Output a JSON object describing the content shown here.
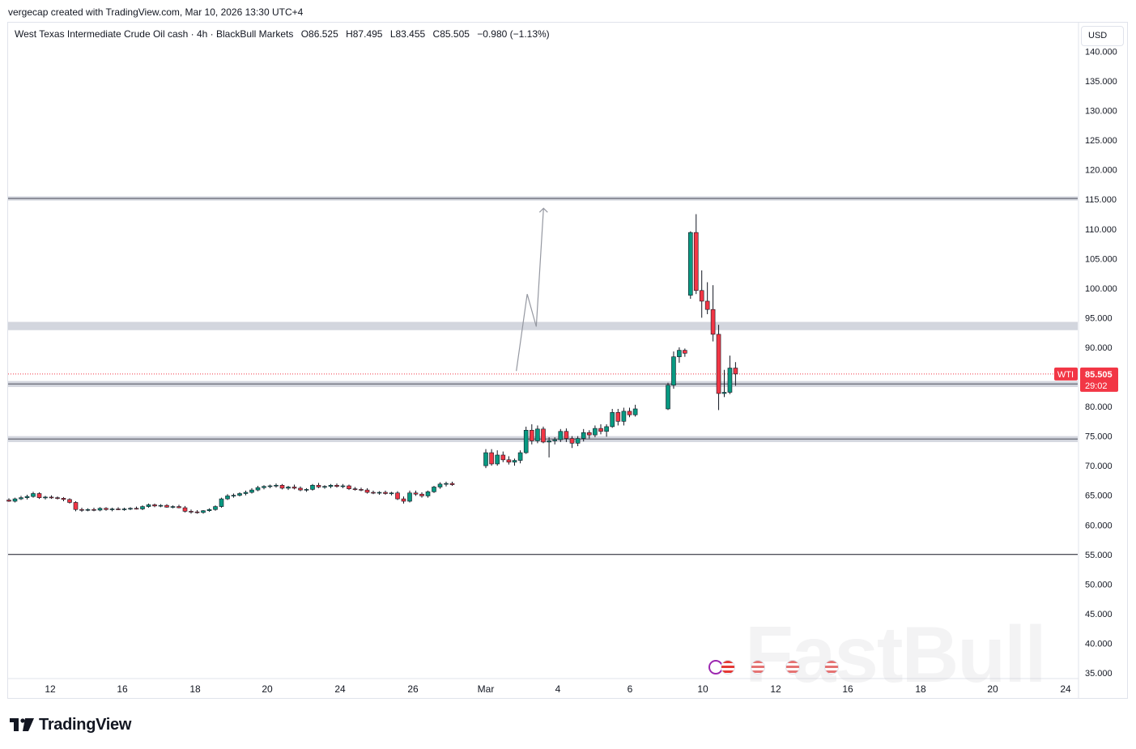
{
  "caption": "vergecap created with TradingView.com, Mar 10, 2026 13:30 UTC+4",
  "legend": {
    "symbol_title": "West Texas Intermediate Crude Oil cash · 4h · BlackBull Markets",
    "open": "O86.525",
    "high": "H87.495",
    "low": "L83.455",
    "close": "C85.505",
    "change": "−0.980 (−1.13%)"
  },
  "currency_button": "USD",
  "price_tag": {
    "symbol": "WTI",
    "price": "85.505",
    "countdown": "29:02",
    "color": "#f23645"
  },
  "logo_text": "TradingView",
  "watermark": "FastBull",
  "colors": {
    "up": "#089981",
    "down": "#f23645",
    "zone": "#d1d4dc",
    "grid_text": "#131722"
  },
  "chart_data": {
    "type": "candlestick",
    "timeframe": "4h",
    "ylim": [
      33,
      143
    ],
    "y_ticks": [
      "35.000",
      "40.000",
      "45.000",
      "50.000",
      "55.000",
      "60.000",
      "65.000",
      "70.000",
      "75.000",
      "80.000",
      "85.000",
      "90.000",
      "95.000",
      "100.000",
      "105.000",
      "110.000",
      "115.000",
      "120.000",
      "125.000",
      "130.000",
      "135.000",
      "140.000"
    ],
    "x_ticks": [
      {
        "label": "12",
        "day": 12
      },
      {
        "label": "16",
        "day": 16
      },
      {
        "label": "18",
        "day": 18
      },
      {
        "label": "20",
        "day": 20
      },
      {
        "label": "24",
        "day": 24
      },
      {
        "label": "26",
        "day": 26
      },
      {
        "label": "Mar",
        "day": 28
      },
      {
        "label": "4",
        "day": 30
      },
      {
        "label": "6",
        "day": 32
      },
      {
        "label": "10",
        "day": 34
      },
      {
        "label": "12",
        "day": 36
      },
      {
        "label": "16",
        "day": 38
      },
      {
        "label": "18",
        "day": 40
      },
      {
        "label": "20",
        "day": 42
      },
      {
        "label": "24",
        "day": 44
      }
    ],
    "x_tick_days_note": "",
    "horizontal_zones": [
      {
        "top": 115.5,
        "bottom": 114.8,
        "style": "double-line"
      },
      {
        "top": 94.3,
        "bottom": 92.9,
        "style": "band"
      },
      {
        "top": 84.3,
        "bottom": 83.3,
        "style": "double-line"
      },
      {
        "top": 75.0,
        "bottom": 74.0,
        "style": "double-line"
      }
    ],
    "horizontal_lines": [
      55.0
    ],
    "projection_path": [
      {
        "t": 37.7,
        "p": 86.0
      },
      {
        "t": 38.3,
        "p": 99.0
      },
      {
        "t": 38.8,
        "p": 93.5
      },
      {
        "t": 39.2,
        "p": 113.5
      }
    ],
    "candles": [
      {
        "o": 64.2,
        "h": 64.5,
        "l": 63.9,
        "c": 64.0
      },
      {
        "o": 64.0,
        "h": 64.6,
        "l": 63.8,
        "c": 64.4
      },
      {
        "o": 64.4,
        "h": 64.9,
        "l": 64.2,
        "c": 64.6
      },
      {
        "o": 64.6,
        "h": 65.1,
        "l": 64.3,
        "c": 64.8
      },
      {
        "o": 64.8,
        "h": 65.6,
        "l": 64.6,
        "c": 65.3
      },
      {
        "o": 65.3,
        "h": 65.5,
        "l": 64.4,
        "c": 64.6
      },
      {
        "o": 64.6,
        "h": 64.9,
        "l": 64.3,
        "c": 64.7
      },
      {
        "o": 64.7,
        "h": 65.0,
        "l": 64.4,
        "c": 64.6
      },
      {
        "o": 64.6,
        "h": 64.8,
        "l": 64.3,
        "c": 64.5
      },
      {
        "o": 64.5,
        "h": 64.7,
        "l": 64.0,
        "c": 64.3
      },
      {
        "o": 64.3,
        "h": 64.5,
        "l": 63.6,
        "c": 63.8
      },
      {
        "o": 63.8,
        "h": 64.0,
        "l": 62.3,
        "c": 62.6
      },
      {
        "o": 62.6,
        "h": 62.9,
        "l": 62.2,
        "c": 62.5
      },
      {
        "o": 62.5,
        "h": 62.8,
        "l": 62.3,
        "c": 62.6
      },
      {
        "o": 62.6,
        "h": 62.9,
        "l": 62.3,
        "c": 62.5
      },
      {
        "o": 62.5,
        "h": 63.0,
        "l": 62.3,
        "c": 62.8
      },
      {
        "o": 62.8,
        "h": 63.0,
        "l": 62.4,
        "c": 62.6
      },
      {
        "o": 62.6,
        "h": 62.9,
        "l": 62.3,
        "c": 62.7
      },
      {
        "o": 62.7,
        "h": 63.0,
        "l": 62.5,
        "c": 62.6
      },
      {
        "o": 62.6,
        "h": 62.9,
        "l": 62.4,
        "c": 62.7
      },
      {
        "o": 62.7,
        "h": 63.0,
        "l": 62.5,
        "c": 62.8
      },
      {
        "o": 62.8,
        "h": 63.1,
        "l": 62.6,
        "c": 62.7
      },
      {
        "o": 62.7,
        "h": 63.3,
        "l": 62.5,
        "c": 63.1
      },
      {
        "o": 63.1,
        "h": 63.6,
        "l": 62.9,
        "c": 63.4
      },
      {
        "o": 63.4,
        "h": 63.6,
        "l": 63.0,
        "c": 63.2
      },
      {
        "o": 63.2,
        "h": 63.5,
        "l": 63.0,
        "c": 63.3
      },
      {
        "o": 63.3,
        "h": 63.5,
        "l": 62.9,
        "c": 63.0
      },
      {
        "o": 63.0,
        "h": 63.3,
        "l": 62.8,
        "c": 63.1
      },
      {
        "o": 63.1,
        "h": 63.4,
        "l": 62.8,
        "c": 62.9
      },
      {
        "o": 62.9,
        "h": 63.2,
        "l": 62.1,
        "c": 62.3
      },
      {
        "o": 62.3,
        "h": 62.6,
        "l": 61.9,
        "c": 62.2
      },
      {
        "o": 62.2,
        "h": 62.5,
        "l": 61.9,
        "c": 62.1
      },
      {
        "o": 62.1,
        "h": 62.5,
        "l": 61.9,
        "c": 62.4
      },
      {
        "o": 62.4,
        "h": 62.8,
        "l": 62.2,
        "c": 62.6
      },
      {
        "o": 62.6,
        "h": 63.3,
        "l": 62.4,
        "c": 63.1
      },
      {
        "o": 63.1,
        "h": 64.6,
        "l": 62.9,
        "c": 64.4
      },
      {
        "o": 64.4,
        "h": 65.2,
        "l": 64.2,
        "c": 64.9
      },
      {
        "o": 64.9,
        "h": 65.3,
        "l": 64.6,
        "c": 65.0
      },
      {
        "o": 65.0,
        "h": 65.5,
        "l": 64.8,
        "c": 65.3
      },
      {
        "o": 65.3,
        "h": 65.8,
        "l": 65.0,
        "c": 65.5
      },
      {
        "o": 65.5,
        "h": 66.2,
        "l": 65.3,
        "c": 65.9
      },
      {
        "o": 65.9,
        "h": 66.6,
        "l": 65.7,
        "c": 66.3
      },
      {
        "o": 66.3,
        "h": 66.7,
        "l": 66.0,
        "c": 66.5
      },
      {
        "o": 66.5,
        "h": 66.8,
        "l": 66.2,
        "c": 66.6
      },
      {
        "o": 66.6,
        "h": 67.0,
        "l": 66.3,
        "c": 66.7
      },
      {
        "o": 66.7,
        "h": 66.9,
        "l": 66.0,
        "c": 66.2
      },
      {
        "o": 66.2,
        "h": 66.6,
        "l": 65.9,
        "c": 66.4
      },
      {
        "o": 66.4,
        "h": 66.8,
        "l": 66.0,
        "c": 66.2
      },
      {
        "o": 66.2,
        "h": 66.5,
        "l": 65.7,
        "c": 65.9
      },
      {
        "o": 65.9,
        "h": 66.2,
        "l": 65.6,
        "c": 66.0
      },
      {
        "o": 66.0,
        "h": 66.9,
        "l": 65.8,
        "c": 66.7
      },
      {
        "o": 66.7,
        "h": 67.1,
        "l": 66.2,
        "c": 66.4
      },
      {
        "o": 66.4,
        "h": 66.7,
        "l": 66.1,
        "c": 66.5
      },
      {
        "o": 66.5,
        "h": 66.9,
        "l": 66.2,
        "c": 66.7
      },
      {
        "o": 66.7,
        "h": 67.0,
        "l": 66.3,
        "c": 66.5
      },
      {
        "o": 66.5,
        "h": 66.9,
        "l": 66.2,
        "c": 66.6
      },
      {
        "o": 66.6,
        "h": 66.8,
        "l": 65.9,
        "c": 66.1
      },
      {
        "o": 66.1,
        "h": 66.4,
        "l": 65.8,
        "c": 66.0
      },
      {
        "o": 66.0,
        "h": 66.3,
        "l": 65.7,
        "c": 65.9
      },
      {
        "o": 65.9,
        "h": 66.2,
        "l": 65.3,
        "c": 65.5
      },
      {
        "o": 65.5,
        "h": 65.8,
        "l": 65.2,
        "c": 65.4
      },
      {
        "o": 65.4,
        "h": 65.7,
        "l": 65.1,
        "c": 65.5
      },
      {
        "o": 65.5,
        "h": 65.8,
        "l": 65.1,
        "c": 65.3
      },
      {
        "o": 65.3,
        "h": 65.6,
        "l": 65.0,
        "c": 65.4
      },
      {
        "o": 65.4,
        "h": 65.7,
        "l": 64.2,
        "c": 64.4
      },
      {
        "o": 64.4,
        "h": 64.8,
        "l": 63.6,
        "c": 64.0
      },
      {
        "o": 64.0,
        "h": 65.8,
        "l": 63.8,
        "c": 65.4
      },
      {
        "o": 65.4,
        "h": 65.8,
        "l": 64.9,
        "c": 65.2
      },
      {
        "o": 65.2,
        "h": 65.5,
        "l": 64.6,
        "c": 64.9
      },
      {
        "o": 64.9,
        "h": 65.8,
        "l": 64.6,
        "c": 65.6
      },
      {
        "o": 65.6,
        "h": 66.6,
        "l": 65.4,
        "c": 66.4
      },
      {
        "o": 66.4,
        "h": 67.2,
        "l": 66.1,
        "c": 66.9
      },
      {
        "o": 66.9,
        "h": 67.3,
        "l": 66.5,
        "c": 67.0
      },
      {
        "o": 67.0,
        "h": 67.3,
        "l": 66.6,
        "c": 66.8
      },
      {
        "o": 70.0,
        "h": 72.8,
        "l": 69.6,
        "c": 72.2
      },
      {
        "o": 72.2,
        "h": 72.8,
        "l": 70.0,
        "c": 70.3
      },
      {
        "o": 70.3,
        "h": 72.6,
        "l": 70.0,
        "c": 71.8
      },
      {
        "o": 71.8,
        "h": 72.4,
        "l": 70.6,
        "c": 71.0
      },
      {
        "o": 71.0,
        "h": 71.6,
        "l": 70.2,
        "c": 70.6
      },
      {
        "o": 70.6,
        "h": 71.2,
        "l": 70.0,
        "c": 70.9
      },
      {
        "o": 70.9,
        "h": 72.6,
        "l": 70.4,
        "c": 72.2
      },
      {
        "o": 72.2,
        "h": 76.6,
        "l": 72.0,
        "c": 76.0
      },
      {
        "o": 76.0,
        "h": 77.0,
        "l": 73.6,
        "c": 74.2
      },
      {
        "o": 74.2,
        "h": 76.8,
        "l": 73.8,
        "c": 76.2
      },
      {
        "o": 76.2,
        "h": 76.6,
        "l": 73.8,
        "c": 74.0
      },
      {
        "o": 74.0,
        "h": 74.8,
        "l": 71.4,
        "c": 74.2
      },
      {
        "o": 74.2,
        "h": 74.8,
        "l": 73.6,
        "c": 74.4
      },
      {
        "o": 74.4,
        "h": 76.2,
        "l": 74.0,
        "c": 75.8
      },
      {
        "o": 75.8,
        "h": 76.3,
        "l": 74.0,
        "c": 74.6
      },
      {
        "o": 74.6,
        "h": 75.0,
        "l": 73.0,
        "c": 73.8
      },
      {
        "o": 73.8,
        "h": 75.0,
        "l": 73.3,
        "c": 74.6
      },
      {
        "o": 74.6,
        "h": 76.2,
        "l": 74.1,
        "c": 75.6
      },
      {
        "o": 75.6,
        "h": 76.0,
        "l": 74.6,
        "c": 75.2
      },
      {
        "o": 75.2,
        "h": 76.8,
        "l": 74.8,
        "c": 76.3
      },
      {
        "o": 76.3,
        "h": 77.0,
        "l": 75.3,
        "c": 75.8
      },
      {
        "o": 75.8,
        "h": 77.0,
        "l": 74.9,
        "c": 76.6
      },
      {
        "o": 76.6,
        "h": 79.6,
        "l": 76.4,
        "c": 79.0
      },
      {
        "o": 79.0,
        "h": 79.6,
        "l": 76.8,
        "c": 77.5
      },
      {
        "o": 77.5,
        "h": 79.8,
        "l": 76.8,
        "c": 79.2
      },
      {
        "o": 79.2,
        "h": 79.8,
        "l": 78.2,
        "c": 78.6
      },
      {
        "o": 78.6,
        "h": 80.3,
        "l": 78.3,
        "c": 79.6
      },
      {
        "o": 79.6,
        "h": 84.0,
        "l": 79.4,
        "c": 83.6
      },
      {
        "o": 83.6,
        "h": 89.3,
        "l": 83.0,
        "c": 88.4
      },
      {
        "o": 88.4,
        "h": 90.0,
        "l": 87.4,
        "c": 89.5
      },
      {
        "o": 89.5,
        "h": 89.8,
        "l": 88.4,
        "c": 89.0
      },
      {
        "o": 98.8,
        "h": 109.6,
        "l": 98.2,
        "c": 109.4
      },
      {
        "o": 109.4,
        "h": 112.5,
        "l": 99.0,
        "c": 99.6
      },
      {
        "o": 99.6,
        "h": 103.0,
        "l": 95.0,
        "c": 97.8
      },
      {
        "o": 97.8,
        "h": 101.0,
        "l": 95.6,
        "c": 96.4
      },
      {
        "o": 96.4,
        "h": 100.5,
        "l": 91.0,
        "c": 92.2
      },
      {
        "o": 92.2,
        "h": 93.8,
        "l": 79.4,
        "c": 82.2
      },
      {
        "o": 82.2,
        "h": 86.2,
        "l": 81.6,
        "c": 82.4
      },
      {
        "o": 82.4,
        "h": 88.6,
        "l": 82.1,
        "c": 86.5
      },
      {
        "o": 86.5,
        "h": 87.5,
        "l": 83.5,
        "c": 85.5
      }
    ]
  }
}
